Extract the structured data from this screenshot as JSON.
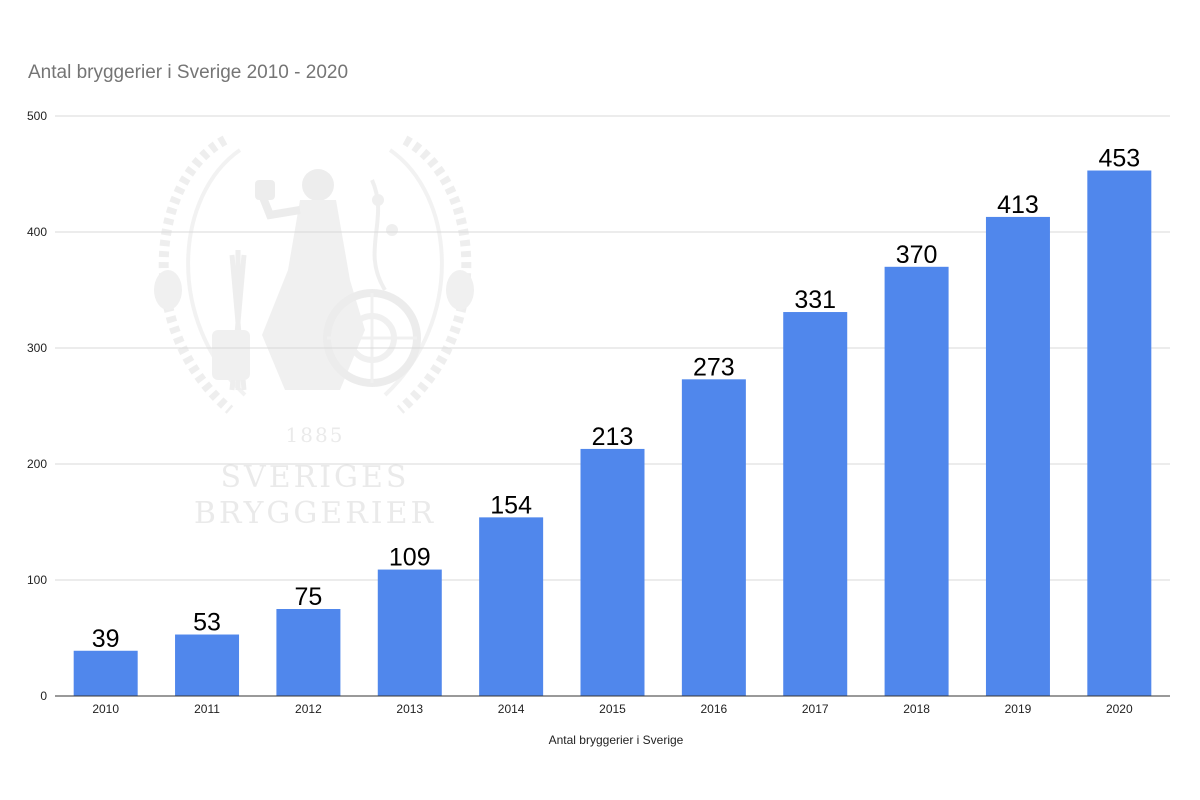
{
  "chart_data": {
    "type": "bar",
    "title": "Antal bryggerier i Sverige 2010 - 2020",
    "xlabel": "Antal bryggerier i Sverige",
    "ylabel": "",
    "ylim": [
      0,
      500
    ],
    "yticks": [
      0,
      100,
      200,
      300,
      400,
      500
    ],
    "categories": [
      "2010",
      "2011",
      "2012",
      "2013",
      "2014",
      "2015",
      "2016",
      "2017",
      "2018",
      "2019",
      "2020"
    ],
    "series": [
      {
        "values": [
          39,
          53,
          75,
          109,
          154,
          213,
          273,
          331,
          370,
          413,
          453
        ],
        "color": "#5087ec"
      }
    ],
    "data_labels": true,
    "grid": true,
    "legend": "none"
  },
  "watermark": {
    "year": "1885",
    "line1": "SVERIGES",
    "line2": "BRYGGERIER"
  }
}
